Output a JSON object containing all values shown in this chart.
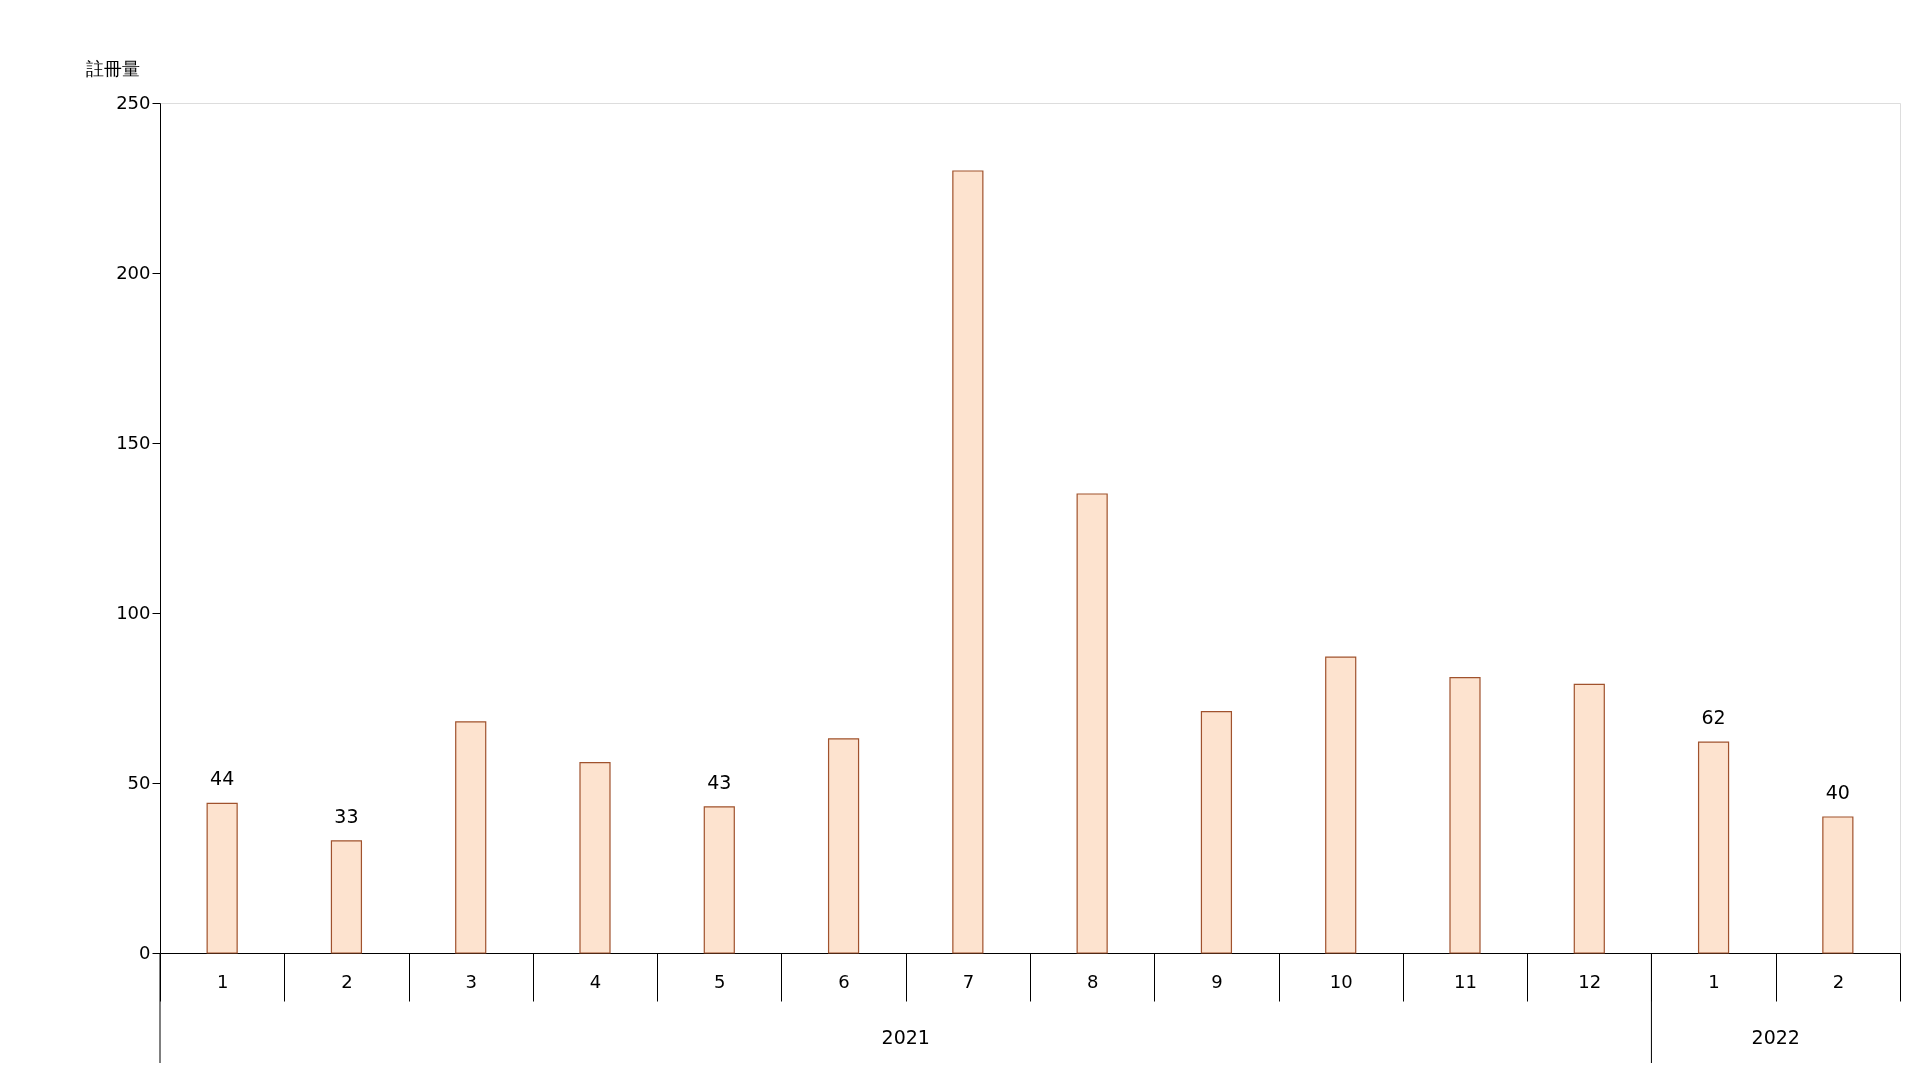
{
  "chart_data": {
    "type": "bar",
    "ylabel": "註冊量",
    "categories": [
      "1",
      "2",
      "3",
      "4",
      "5",
      "6",
      "7",
      "8",
      "9",
      "10",
      "11",
      "12",
      "1",
      "2"
    ],
    "values": [
      44,
      33,
      68,
      56,
      43,
      63,
      230,
      135,
      71,
      87,
      81,
      79,
      62,
      40
    ],
    "value_labels": [
      "44",
      "33",
      null,
      null,
      "43",
      null,
      null,
      null,
      null,
      null,
      null,
      null,
      "62",
      "40"
    ],
    "color": "#fde3cf",
    "ylim": [
      0,
      250
    ],
    "yticks": [
      0,
      50,
      100,
      150,
      200,
      250
    ],
    "grid": false,
    "annotations": [
      "2021",
      "2022"
    ]
  }
}
